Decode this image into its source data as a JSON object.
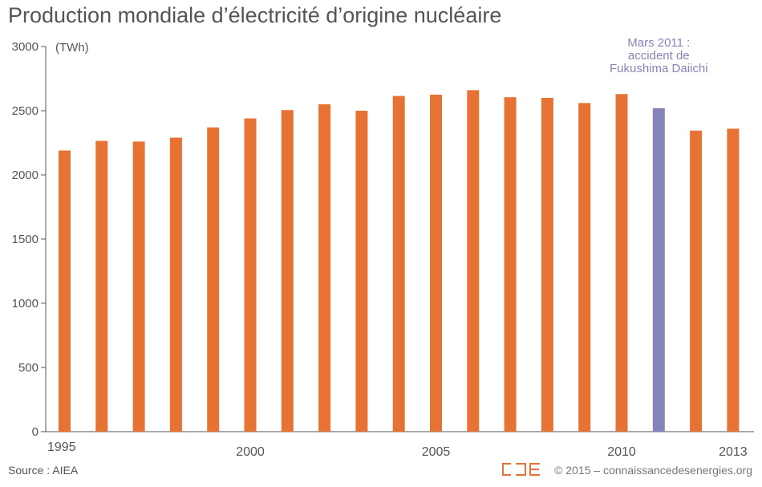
{
  "title": "Production mondiale d’électricité d’origine nucléaire",
  "footer": {
    "source": "Source : AIEA",
    "copyright": "© 2015 – connaissancedesenergies.org",
    "logo_text": "CDE"
  },
  "colors": {
    "bar": "#E67234",
    "highlight": "#8682BA",
    "axis": "#555555",
    "logo": "#E67234"
  },
  "chart_data": {
    "type": "bar",
    "title": "Production mondiale d’électricité d’origine nucléaire",
    "unit_label": "(TWh)",
    "xlabel": "",
    "ylabel": "TWh",
    "ylim": [
      0,
      3000
    ],
    "yticks": [
      0,
      500,
      1000,
      1500,
      2000,
      2500,
      3000
    ],
    "categories": [
      "1995",
      "1996",
      "1997",
      "1998",
      "1999",
      "2000",
      "2001",
      "2002",
      "2003",
      "2004",
      "2005",
      "2006",
      "2007",
      "2008",
      "2009",
      "2010",
      "2011",
      "2012",
      "2013"
    ],
    "xtick_labels": [
      "1995",
      "2000",
      "2005",
      "2010",
      "2013"
    ],
    "values": [
      2190,
      2265,
      2260,
      2290,
      2370,
      2440,
      2505,
      2550,
      2500,
      2615,
      2625,
      2660,
      2605,
      2600,
      2560,
      2630,
      2520,
      2345,
      2360
    ],
    "highlight_category": "2011",
    "annotation": {
      "category": "2011",
      "lines": [
        "Mars 2011 :",
        "accident de",
        "Fukushima Daiichi"
      ]
    }
  }
}
